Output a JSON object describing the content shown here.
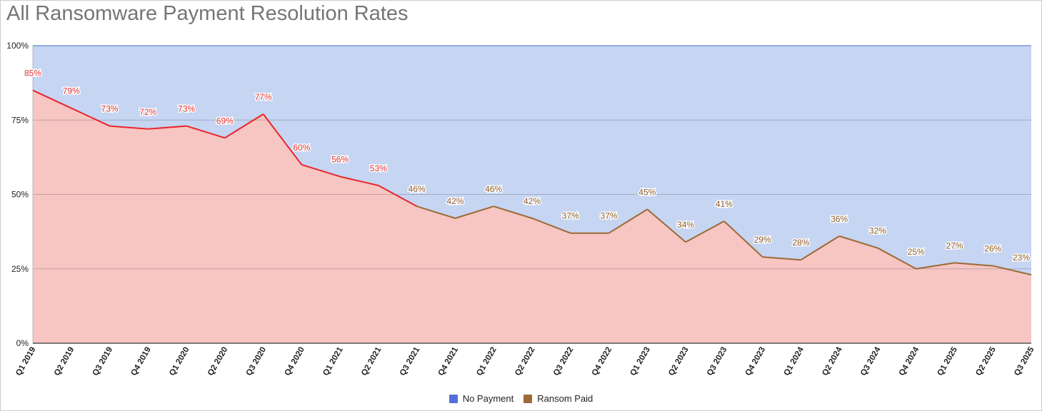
{
  "chart_data": {
    "type": "area",
    "stacked": "percent",
    "title": "All Ransomware Payment Resolution Rates",
    "categories": [
      "Q1 2019",
      "Q2 2019",
      "Q3 2019",
      "Q4 2019",
      "Q1 2020",
      "Q2 2020",
      "Q3 2020",
      "Q4 2020",
      "Q1 2021",
      "Q2 2021",
      "Q3 2021",
      "Q4 2021",
      "Q1 2022",
      "Q2 2022",
      "Q3 2022",
      "Q4 2022",
      "Q1 2023",
      "Q2 2023",
      "Q3 2023",
      "Q4 2023",
      "Q1 2024",
      "Q2 2024",
      "Q3 2024",
      "Q4 2024",
      "Q1 2025",
      "Q2 2025",
      "Q3 2025"
    ],
    "series": [
      {
        "name": "No Payment",
        "color": "#5470d8",
        "fill": "#c5d5f2",
        "values": [
          15,
          21,
          27,
          28,
          27,
          31,
          23,
          40,
          44,
          47,
          54,
          58,
          54,
          58,
          63,
          63,
          55,
          66,
          59,
          71,
          72,
          64,
          68,
          75,
          73,
          74,
          77
        ]
      },
      {
        "name": "Ransom Paid",
        "color": "#9c6a35",
        "fill": "#f7c5c2",
        "line_color_early": "#e8262a",
        "values": [
          85,
          79,
          73,
          72,
          73,
          69,
          77,
          60,
          56,
          53,
          46,
          42,
          46,
          42,
          37,
          37,
          45,
          34,
          41,
          29,
          28,
          36,
          32,
          25,
          27,
          26,
          23
        ]
      }
    ],
    "data_labels": [
      "85%",
      "79%",
      "73%",
      "72%",
      "73%",
      "69%",
      "77%",
      "60%",
      "56%",
      "53%",
      "46%",
      "42%",
      "46%",
      "42%",
      "37%",
      "37%",
      "45%",
      "34%",
      "41%",
      "29%",
      "28%",
      "36%",
      "32%",
      "25%",
      "27%",
      "26%",
      "23%"
    ],
    "ylim": [
      0,
      100
    ],
    "yticks": [
      "0%",
      "25%",
      "50%",
      "75%",
      "100%"
    ],
    "grid": true,
    "legend": "bottom"
  }
}
